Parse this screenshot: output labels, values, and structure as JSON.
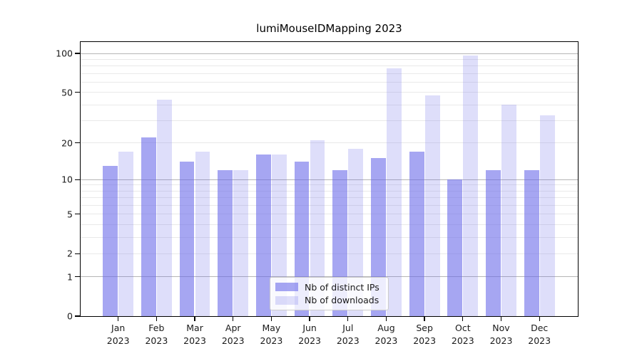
{
  "chart_data": {
    "type": "bar",
    "title": "lumiMouseIDMapping 2023",
    "categories": [
      "Jan",
      "Feb",
      "Mar",
      "Apr",
      "May",
      "Jun",
      "Jul",
      "Aug",
      "Sep",
      "Oct",
      "Nov",
      "Dec"
    ],
    "category_year": "2023",
    "series": [
      {
        "name": "Nb of distinct IPs",
        "color": "rgba(107,107,233,0.60)",
        "values": [
          13,
          22,
          14,
          12,
          16,
          14,
          12,
          15,
          17,
          10,
          12,
          12
        ]
      },
      {
        "name": "Nb of downloads",
        "color": "rgba(107,107,233,0.22)",
        "values": [
          17,
          44,
          17,
          12,
          16,
          21,
          18,
          77,
          47,
          96,
          40,
          33
        ]
      }
    ],
    "yscale": "log1p",
    "ylim": [
      0,
      101
    ],
    "y_tick_labels": [
      "100",
      "50",
      "20",
      "10",
      "5",
      "2",
      "1",
      "0"
    ],
    "y_tick_values": [
      100,
      50,
      20,
      10,
      5,
      2,
      1,
      0
    ],
    "y_major_grid": [
      1,
      10,
      100
    ],
    "y_minor_grid": [
      2,
      3,
      4,
      5,
      6,
      7,
      8,
      9,
      20,
      30,
      40,
      50,
      60,
      70,
      80,
      90
    ],
    "grid": true,
    "legend_position": "lower center"
  },
  "colors": {
    "major_grid": "#b5b5b5",
    "minor_grid": "#e9e9e9",
    "spine": "#000000",
    "text": "#1a1a1a",
    "legend_border": "#cccccc",
    "legend_bg": "rgba(255,255,255,0.8)"
  }
}
